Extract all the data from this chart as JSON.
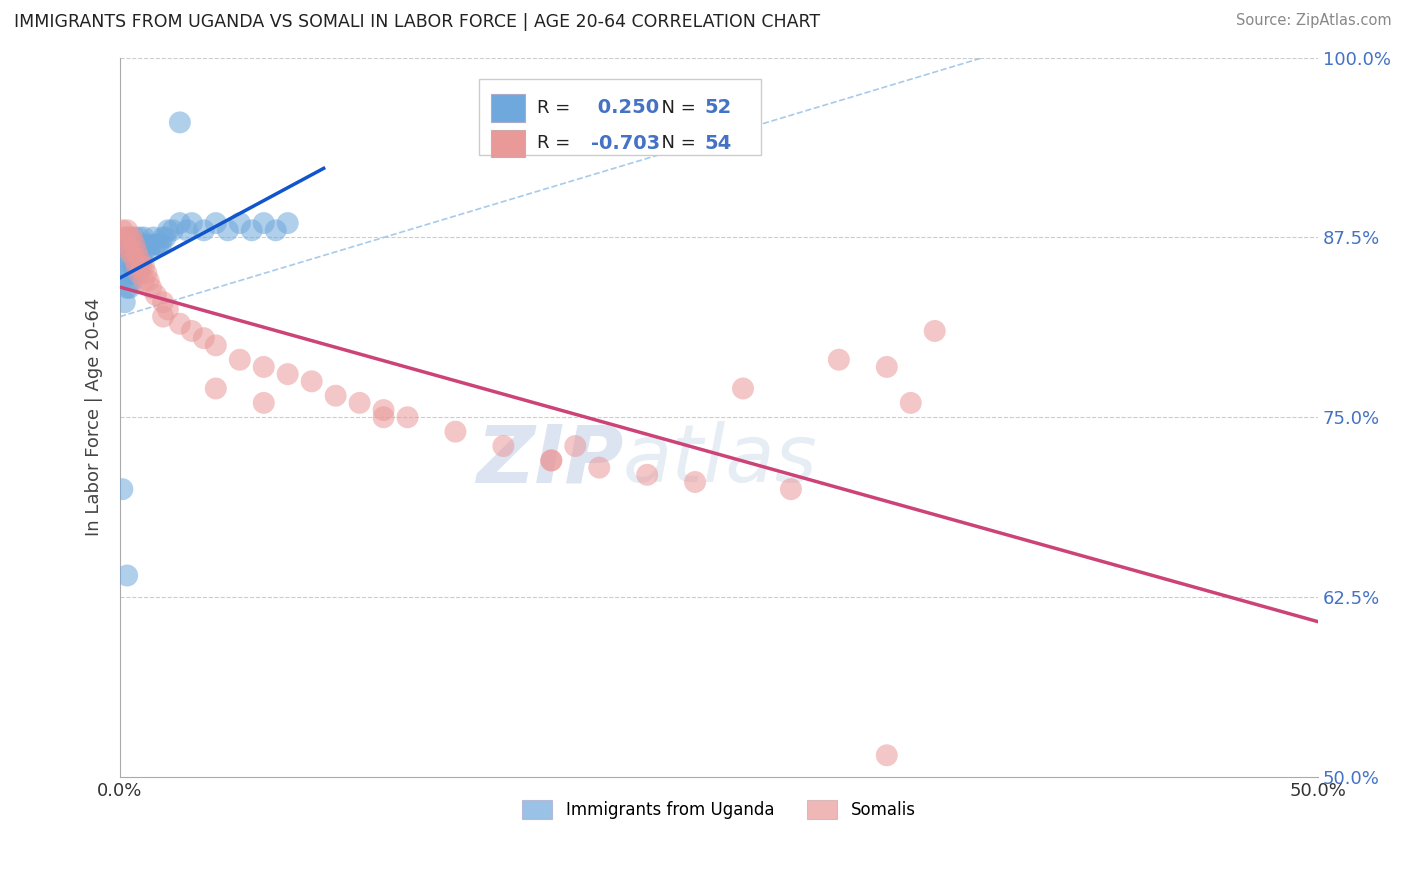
{
  "title": "IMMIGRANTS FROM UGANDA VS SOMALI IN LABOR FORCE | AGE 20-64 CORRELATION CHART",
  "source": "Source: ZipAtlas.com",
  "ylabel": "In Labor Force | Age 20-64",
  "xlim": [
    0.0,
    0.5
  ],
  "ylim": [
    0.5,
    1.0
  ],
  "uganda_R": 0.25,
  "uganda_N": 52,
  "somali_R": -0.703,
  "somali_N": 54,
  "uganda_color": "#6fa8dc",
  "somali_color": "#ea9999",
  "uganda_line_color": "#1155cc",
  "somali_line_color": "#cc4477",
  "diag_line_color": "#9fc5e8",
  "watermark_zip": "ZIP",
  "watermark_atlas": "atlas",
  "legend_label_uganda": "Immigrants from Uganda",
  "legend_label_somali": "Somalis",
  "uganda_x": [
    0.001,
    0.001,
    0.002,
    0.002,
    0.002,
    0.003,
    0.003,
    0.003,
    0.004,
    0.004,
    0.004,
    0.004,
    0.005,
    0.005,
    0.005,
    0.006,
    0.006,
    0.006,
    0.007,
    0.007,
    0.007,
    0.008,
    0.008,
    0.008,
    0.009,
    0.009,
    0.01,
    0.01,
    0.011,
    0.012,
    0.013,
    0.014,
    0.015,
    0.016,
    0.017,
    0.018,
    0.019,
    0.02,
    0.022,
    0.025,
    0.028,
    0.03,
    0.035,
    0.04,
    0.045,
    0.05,
    0.055,
    0.06,
    0.065,
    0.07,
    0.003,
    0.025
  ],
  "uganda_y": [
    0.7,
    0.845,
    0.87,
    0.86,
    0.83,
    0.875,
    0.855,
    0.84,
    0.87,
    0.86,
    0.85,
    0.84,
    0.865,
    0.855,
    0.845,
    0.875,
    0.865,
    0.855,
    0.87,
    0.86,
    0.85,
    0.875,
    0.865,
    0.855,
    0.87,
    0.86,
    0.875,
    0.865,
    0.87,
    0.865,
    0.87,
    0.875,
    0.87,
    0.87,
    0.87,
    0.875,
    0.875,
    0.88,
    0.88,
    0.885,
    0.88,
    0.885,
    0.88,
    0.885,
    0.88,
    0.885,
    0.88,
    0.885,
    0.88,
    0.885,
    0.64,
    0.955
  ],
  "somali_x": [
    0.001,
    0.002,
    0.003,
    0.003,
    0.004,
    0.004,
    0.005,
    0.005,
    0.006,
    0.006,
    0.007,
    0.007,
    0.008,
    0.008,
    0.009,
    0.01,
    0.01,
    0.011,
    0.012,
    0.013,
    0.015,
    0.018,
    0.02,
    0.025,
    0.03,
    0.035,
    0.04,
    0.05,
    0.06,
    0.07,
    0.08,
    0.09,
    0.1,
    0.11,
    0.12,
    0.14,
    0.16,
    0.18,
    0.2,
    0.22,
    0.24,
    0.28,
    0.3,
    0.32,
    0.34,
    0.018,
    0.04,
    0.06,
    0.11,
    0.19,
    0.26,
    0.18,
    0.33,
    0.32
  ],
  "somali_y": [
    0.88,
    0.875,
    0.88,
    0.87,
    0.875,
    0.865,
    0.875,
    0.865,
    0.87,
    0.86,
    0.865,
    0.855,
    0.86,
    0.85,
    0.855,
    0.855,
    0.845,
    0.85,
    0.845,
    0.84,
    0.835,
    0.83,
    0.825,
    0.815,
    0.81,
    0.805,
    0.8,
    0.79,
    0.785,
    0.78,
    0.775,
    0.765,
    0.76,
    0.755,
    0.75,
    0.74,
    0.73,
    0.72,
    0.715,
    0.71,
    0.705,
    0.7,
    0.79,
    0.785,
    0.81,
    0.82,
    0.77,
    0.76,
    0.75,
    0.73,
    0.77,
    0.72,
    0.76,
    0.515
  ]
}
